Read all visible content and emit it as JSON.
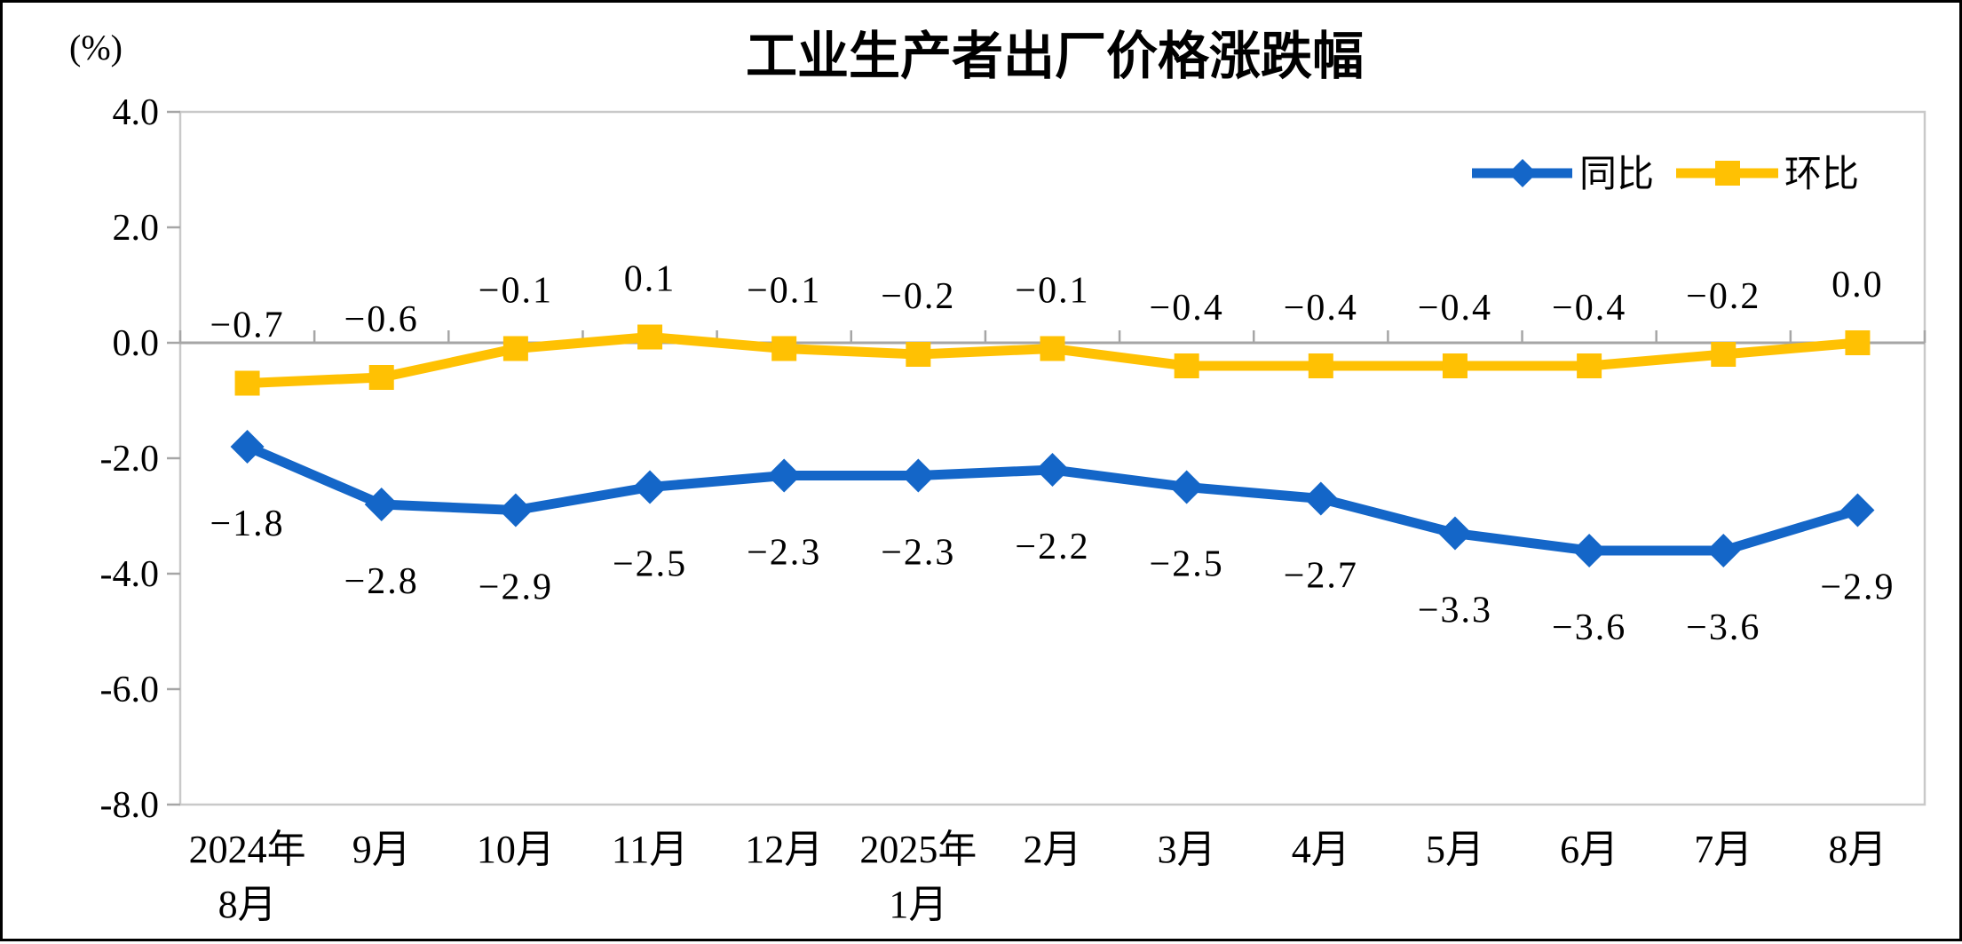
{
  "chart_data": {
    "type": "line",
    "title": "工业生产者出厂价格涨跌幅",
    "unit_label": "(%)",
    "categories": [
      [
        "2024年",
        "8月"
      ],
      [
        "9月"
      ],
      [
        "10月"
      ],
      [
        "11月"
      ],
      [
        "12月"
      ],
      [
        "2025年",
        "1月"
      ],
      [
        "2月"
      ],
      [
        "3月"
      ],
      [
        "4月"
      ],
      [
        "5月"
      ],
      [
        "6月"
      ],
      [
        "7月"
      ],
      [
        "8月"
      ]
    ],
    "series": [
      {
        "name": "同比",
        "color": "#1466C8",
        "marker": "diamond",
        "values": [
          -1.8,
          -2.8,
          -2.9,
          -2.5,
          -2.3,
          -2.3,
          -2.2,
          -2.5,
          -2.7,
          -3.3,
          -3.6,
          -3.6,
          -2.9
        ]
      },
      {
        "name": "环比",
        "color": "#FFC103",
        "marker": "square",
        "values": [
          -0.7,
          -0.6,
          -0.1,
          0.1,
          -0.1,
          -0.2,
          -0.1,
          -0.4,
          -0.4,
          -0.4,
          -0.4,
          -0.2,
          0.0
        ]
      }
    ],
    "ylim": [
      -8.0,
      4.0
    ],
    "ytick_step": 2.0,
    "yticks": [
      "4.0",
      "2.0",
      "0.0",
      "-2.0",
      "-4.0",
      "-6.0",
      "-8.0"
    ],
    "axis_color": "#A6A6A6",
    "frame_color": "#C9C9C9",
    "text_color": "#000000",
    "legend_position": "top-right",
    "grid": false
  }
}
